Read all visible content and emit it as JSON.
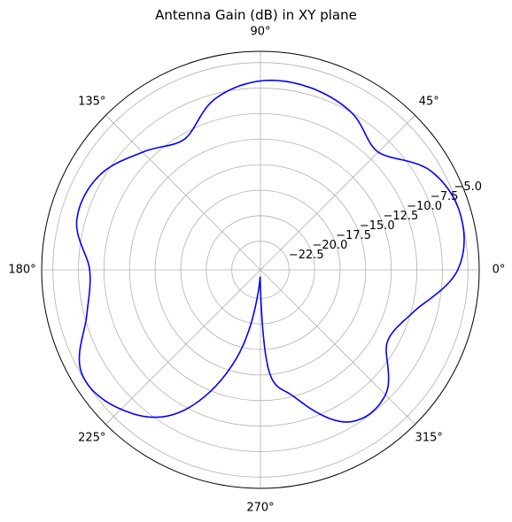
{
  "chart_data": {
    "type": "polar-line",
    "title": "Antenna Gain (dB) in XY plane",
    "angle_unit": "degrees",
    "angle_tick_labels": [
      "0°",
      "45°",
      "90°",
      "135°",
      "180°",
      "225°",
      "270°",
      "315°"
    ],
    "angle_ticks": [
      0,
      45,
      90,
      135,
      180,
      225,
      270,
      315
    ],
    "radial_ticks": [
      -22.5,
      -20.0,
      -17.5,
      -15.0,
      -12.5,
      -10.0,
      -7.5,
      -5.0
    ],
    "radial_tick_labels": [
      "−22.5",
      "−20.0",
      "−17.5",
      "−15.0",
      "−12.5",
      "−10.0",
      "−7.5",
      "−5.0"
    ],
    "rlim": [
      -25.3,
      -3.9
    ],
    "grid": true,
    "series": [
      {
        "color": "#0000ff",
        "theta": [
          0,
          15,
          30,
          45,
          60,
          75,
          90,
          105,
          120,
          135,
          150,
          165,
          180,
          195,
          210,
          225,
          240,
          255,
          265,
          270,
          275,
          285,
          300,
          315,
          330,
          345,
          360
        ],
        "r": [
          -6.0,
          -5.0,
          -6.0,
          -9.0,
          -7.5,
          -6.8,
          -6.8,
          -8.0,
          -10.5,
          -9.0,
          -7.0,
          -6.7,
          -8.6,
          -7.7,
          -5.1,
          -6.0,
          -9.1,
          -16.4,
          -23.5,
          -23.7,
          -15.2,
          -12.4,
          -8.1,
          -8.0,
          -11.0,
          -9.7,
          -6.0
        ]
      }
    ]
  }
}
